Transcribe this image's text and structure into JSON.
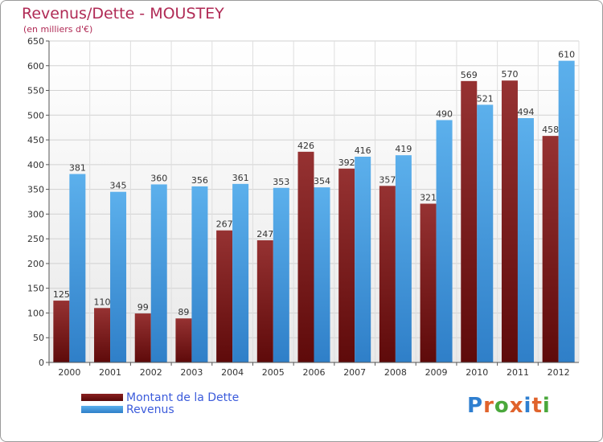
{
  "title": "Revenus/Dette - MOUSTEY",
  "subtitle": "(en milliers d'€)",
  "colors": {
    "title": "#b02a55",
    "dette": "#7a1717",
    "revenus": "#4da3e4",
    "legend_text": "#3b5bdb"
  },
  "legend": [
    {
      "label": "Montant de la Dette",
      "color": "#6b1010"
    },
    {
      "label": "Revenus",
      "color": "#4da3e4"
    }
  ],
  "logo": {
    "text": "Proxiti",
    "colors": [
      "#2f7fd0",
      "#e0632c",
      "#4aa83c",
      "#e0632c",
      "#2f7fd0",
      "#e0632c",
      "#4aa83c"
    ]
  },
  "chart_data": {
    "type": "bar",
    "title": "Revenus/Dette - MOUSTEY",
    "ylabel": "(en milliers d'€)",
    "categories": [
      "2000",
      "2001",
      "2002",
      "2003",
      "2004",
      "2005",
      "2006",
      "2007",
      "2008",
      "2009",
      "2010",
      "2011",
      "2012"
    ],
    "series": [
      {
        "name": "Montant de la Dette",
        "values": [
          125,
          110,
          99,
          89,
          267,
          247,
          426,
          392,
          357,
          321,
          569,
          570,
          458
        ]
      },
      {
        "name": "Revenus",
        "values": [
          381,
          345,
          360,
          356,
          361,
          353,
          354,
          416,
          419,
          490,
          521,
          494,
          610
        ]
      }
    ],
    "ylim": [
      0,
      650
    ],
    "yticks": [
      0,
      50,
      100,
      150,
      200,
      250,
      300,
      350,
      400,
      450,
      500,
      550,
      600,
      650
    ],
    "grid": true,
    "legend_position": "bottom-left"
  }
}
